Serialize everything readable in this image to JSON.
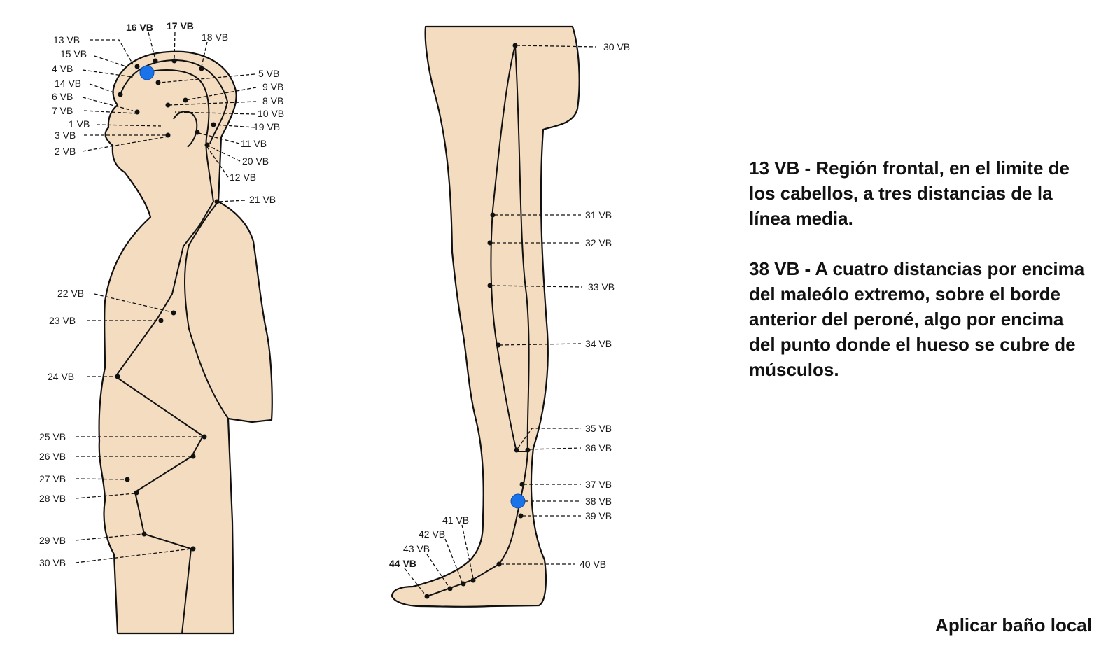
{
  "diagram": {
    "marker_color": "#1a73e8",
    "skin_color": "#f3dcc0",
    "upper_labels": [
      "13 VB",
      "16 VB",
      "17 VB",
      "18 VB",
      "15 VB",
      "4 VB",
      "14 VB",
      "6 VB",
      "7 VB",
      "1 VB",
      "3 VB",
      "2 VB",
      "5 VB",
      "9 VB",
      "8 VB",
      "10 VB",
      "19 VB",
      "11 VB",
      "20 VB",
      "12 VB",
      "21 VB",
      "22 VB",
      "23 VB",
      "24 VB",
      "25 VB",
      "26 VB",
      "27 VB",
      "28 VB",
      "29 VB",
      "30 VB"
    ],
    "leg_labels": [
      "30 VB",
      "31 VB",
      "32 VB",
      "33 VB",
      "34 VB",
      "35 VB",
      "36 VB",
      "37 VB",
      "38 VB",
      "39 VB",
      "40 VB",
      "41 VB",
      "42 VB",
      "43 VB",
      "44 VB"
    ],
    "highlighted_points": [
      "13 VB",
      "38 VB"
    ]
  },
  "descriptions": [
    "13 VB - Región frontal, en el limite de los cabellos, a tres distancias de la línea media.",
    "38 VB - A cuatro distancias por encima del maleólo extremo, sobre el borde anterior del peroné, algo por encima del punto donde el hueso se cubre de músculos."
  ],
  "footer": "Aplicar baño local"
}
